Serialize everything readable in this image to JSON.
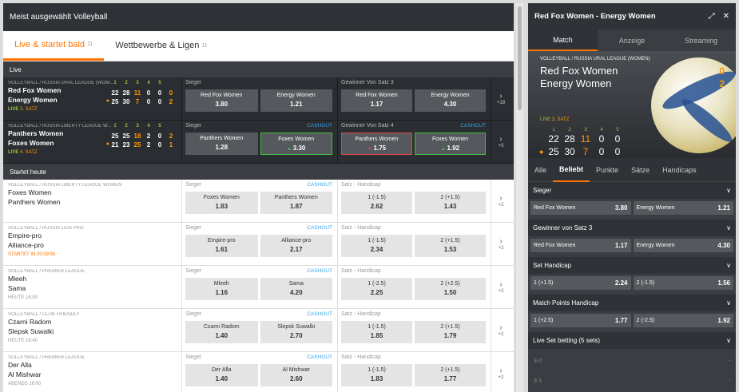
{
  "left_title": "Meist ausgewählt Volleyball",
  "tabs": [
    {
      "label": "Live & startet bald",
      "count": "11"
    },
    {
      "label": "Wettbewerbe & Ligen",
      "count": "11"
    }
  ],
  "live_section": {
    "label": "Live",
    "count": "2"
  },
  "live_matches": [
    {
      "league": "VOLLEYBALL / RUSSIA URAL LEAGUE (WOM...",
      "team1": "Red Fox Women",
      "team2": "Energy Women",
      "set_headers": [
        "1",
        "2",
        "3",
        "4",
        "5"
      ],
      "row1": [
        "22",
        "28",
        "11",
        "0",
        "0",
        "0"
      ],
      "row2": [
        "25",
        "30",
        "7",
        "0",
        "0",
        "2"
      ],
      "live_label": "LIVE",
      "set_label": "3. SATZ",
      "m1_title": "Sieger",
      "m1_b1_label": "Red Fox Women",
      "m1_b1_odd": "3.80",
      "m1_b2_label": "Energy Women",
      "m1_b2_odd": "1.21",
      "m2_title": "Gewinner Von Satz 3",
      "m2_b1_label": "Red Fox Women",
      "m2_b1_odd": "1.17",
      "m2_b2_label": "Energy Women",
      "m2_b2_odd": "4.30",
      "more": "+18"
    },
    {
      "league": "VOLLEYBALL / RUSSIA LIBERTY LEAGUE W...",
      "team1": "Panthers Women",
      "team2": "Foxes Women",
      "set_headers": [
        "1",
        "2",
        "3",
        "4",
        "5"
      ],
      "row1": [
        "25",
        "25",
        "18",
        "2",
        "0",
        "2"
      ],
      "row2": [
        "21",
        "23",
        "25",
        "2",
        "0",
        "1"
      ],
      "live_label": "LIVE",
      "set_label": "4. SATZ",
      "m1_title": "Sieger",
      "m1_cashout": "CASHOUT",
      "m1_b1_label": "Panthers Women",
      "m1_b1_odd": "1.28",
      "m1_b2_label": "Foxes Women",
      "m1_b2_odd": "3.30",
      "m2_title": "Gewinner Von Satz 4",
      "m2_cashout": "CASHOUT",
      "m2_b1_label": "Panthers Women",
      "m2_b1_odd": "1.75",
      "m2_b2_label": "Foxes Women",
      "m2_b2_odd": "1.92",
      "more": "+5"
    }
  ],
  "pre_section": {
    "label": "Startet heute",
    "count": "9"
  },
  "pre_matches": [
    {
      "league": "VOLLEYBALL / RUSSIA LIBERTY LEAGUE WOMEN",
      "team1": "Foxes Women",
      "team2": "Panthers Women",
      "time": "",
      "m1_title": "Sieger",
      "cashout": "CASHOUT",
      "b1_label": "Foxes Women",
      "b1_odd": "1.83",
      "b2_label": "Panthers Women",
      "b2_odd": "1.87",
      "m2_title": "Satz - Handicap",
      "h1_label": "1 (-1.5)",
      "h1_odd": "2.62",
      "h2_label": "2 (+1.5)",
      "h2_odd": "1.43",
      "more": "+2"
    },
    {
      "league": "VOLLEYBALL / RUSSIA LIGA PRO",
      "team1": "Empire-pro",
      "team2": "Alliance-pro",
      "time": "STARTET IN 00:09:55",
      "m1_title": "Sieger",
      "cashout": "CASHOUT",
      "b1_label": "Empire-pro",
      "b1_odd": "1.61",
      "b2_label": "Alliance-pro",
      "b2_odd": "2.17",
      "m2_title": "Satz - Handicap",
      "h1_label": "1 (-1.5)",
      "h1_odd": "2.34",
      "h2_label": "2 (+1.5)",
      "h2_odd": "1.53",
      "more": "+2"
    },
    {
      "league": "VOLLEYBALL / PREMIER LEAGUE",
      "team1": "Mleeh",
      "team2": "Sama",
      "time": "HEUTE 16:00",
      "m1_title": "Sieger",
      "cashout": "CASHOUT",
      "b1_label": "Mleeh",
      "b1_odd": "1.16",
      "b2_label": "Sama",
      "b2_odd": "4.20",
      "m2_title": "Satz - Handicap",
      "h1_label": "1 (-2.5)",
      "h1_odd": "2.25",
      "h2_label": "2 (+2.5)",
      "h2_odd": "1.50",
      "more": "+2"
    },
    {
      "league": "VOLLEYBALL / CLUB FRIENDLY",
      "team1": "Czarni Radom",
      "team2": "Slepsk Suwalki",
      "time": "HEUTE 16:40",
      "m1_title": "Sieger",
      "cashout": "CASHOUT",
      "b1_label": "Czarni Radom",
      "b1_odd": "1.40",
      "b2_label": "Slepsk Suwalki",
      "b2_odd": "2.70",
      "m2_title": "Satz - Handicap",
      "h1_label": "1 (-1.5)",
      "h1_odd": "1.85",
      "h2_label": "2 (+1.5)",
      "h2_odd": "1.79",
      "more": "+2"
    },
    {
      "league": "VOLLEYBALL / PREMIER LEAGUE",
      "team1": "Der Alla",
      "team2": "Al Mishwar",
      "time": "ABENDS 18:00",
      "m1_title": "Sieger",
      "cashout": "CASHOUT",
      "b1_label": "Der Alla",
      "b1_odd": "1.40",
      "b2_label": "Al Mishwar",
      "b2_odd": "2.60",
      "m2_title": "Satz - Handicap",
      "h1_label": "1 (-1.5)",
      "h1_odd": "1.83",
      "h2_label": "2 (+1.5)",
      "h2_odd": "1.77",
      "more": "+2"
    }
  ],
  "right": {
    "title": "Red Fox Women - Energy Women",
    "tabs": [
      "Match",
      "Anzeige",
      "Streaming"
    ],
    "league": "VOLLEYBALL / RUSSIA URAL LEAGUE (WOMEN)",
    "team1": "Red Fox Women",
    "team2": "Energy Women",
    "sets1": "0",
    "sets2": "2",
    "live_label": "LIVE",
    "set_label": "3. SATZ",
    "set_headers": [
      "1",
      "2",
      "3",
      "4",
      "5"
    ],
    "row1": [
      "22",
      "28",
      "11",
      "0",
      "0"
    ],
    "row2": [
      "25",
      "30",
      "7",
      "0",
      "0"
    ],
    "bet_tabs": [
      "Alle",
      "Beliebt",
      "Punkte",
      "Sätze",
      "Handicaps"
    ],
    "markets": [
      {
        "title": "Sieger",
        "b1": "Red Fox Women",
        "o1": "3.80",
        "b2": "Energy Women",
        "o2": "1.21"
      },
      {
        "title": "Gewinner von Satz 3",
        "b1": "Red Fox Women",
        "o1": "1.17",
        "b2": "Energy Women",
        "o2": "4.30"
      },
      {
        "title": "Set Handicap",
        "b1": "1 (+1.5)",
        "o1": "2.24",
        "b2": "2 (-1.5)",
        "o2": "1.56"
      },
      {
        "title": "Match Points Handicap",
        "b1": "1 (+2.5)",
        "o1": "1.77",
        "b2": "2 (-2.5)",
        "o2": "1.92"
      }
    ],
    "live_set_title": "Live Set betting (5 sets)",
    "live_set_rows": [
      {
        "label": "3-0",
        "val": "-"
      },
      {
        "label": "3-1",
        "val": "-"
      }
    ]
  }
}
